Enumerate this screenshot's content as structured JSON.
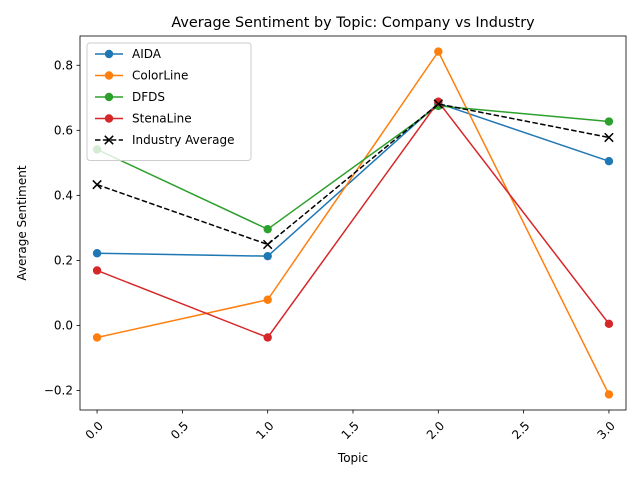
{
  "chart_data": {
    "type": "line",
    "title": "Average Sentiment by Topic: Company vs Industry",
    "xlabel": "Topic",
    "ylabel": "Average Sentiment",
    "x": [
      0,
      1,
      2,
      3
    ],
    "xlim": [
      -0.1,
      3.1
    ],
    "ylim": [
      -0.26,
      0.89
    ],
    "xticks": [
      "0.0",
      "0.5",
      "1.0",
      "1.5",
      "2.0",
      "2.5",
      "3.0"
    ],
    "xtick_values": [
      0,
      0.5,
      1,
      1.5,
      2,
      2.5,
      3
    ],
    "yticks": [
      "−0.2",
      "0.0",
      "0.2",
      "0.4",
      "0.6",
      "0.8"
    ],
    "ytick_values": [
      -0.2,
      0,
      0.2,
      0.4,
      0.6,
      0.8
    ],
    "grid": false,
    "legend_position": "top-left",
    "series": [
      {
        "name": "AIDA",
        "color": "#1f77b4",
        "marker": "circle",
        "dashed": false,
        "values": [
          0.222,
          0.213,
          0.683,
          0.505
        ]
      },
      {
        "name": "ColorLine",
        "color": "#ff7f0e",
        "marker": "circle",
        "dashed": false,
        "values": [
          -0.037,
          0.079,
          0.842,
          -0.212
        ]
      },
      {
        "name": "DFDS",
        "color": "#2ca02c",
        "marker": "circle",
        "dashed": false,
        "values": [
          0.541,
          0.296,
          0.675,
          0.627
        ]
      },
      {
        "name": "StenaLine",
        "color": "#d62728",
        "marker": "circle",
        "dashed": false,
        "values": [
          0.169,
          -0.037,
          0.688,
          0.005
        ]
      },
      {
        "name": "Industry Average",
        "color": "#000000",
        "marker": "x",
        "dashed": true,
        "values": [
          0.433,
          0.249,
          0.681,
          0.578
        ]
      }
    ]
  }
}
